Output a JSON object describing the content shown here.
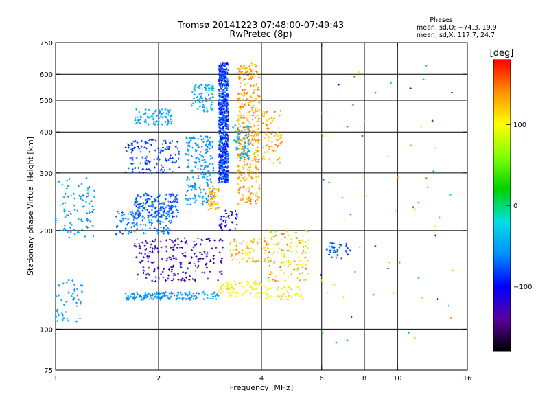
{
  "chart_data": {
    "type": "scatter",
    "title": "Tromsø 20141223 07:48:00-07:49:43",
    "subtitle": "RwPretec (8p)",
    "stats": {
      "heading": "Phases",
      "line1": "mean, sd,O: −74.3, 19.9",
      "line2": "mean, sd,X: 117.7, 24.7"
    },
    "xlabel": "Frequency [MHz]",
    "ylabel": "Stationary phase Virtual Height [km]",
    "x_scale": "log",
    "y_scale": "log",
    "xlim": [
      1,
      16
    ],
    "ylim": [
      75,
      750
    ],
    "xticks": [
      1,
      2,
      4,
      6,
      8,
      10,
      16
    ],
    "xtick_labels": [
      "1",
      "2",
      "4",
      "6",
      "8",
      "10",
      "16"
    ],
    "x_gridlines": [
      2,
      4,
      6,
      8,
      10
    ],
    "yticks": [
      75,
      100,
      200,
      300,
      400,
      500,
      600,
      750
    ],
    "ytick_labels": [
      "75",
      "100",
      "200",
      "300",
      "400",
      "500",
      "600",
      "750"
    ],
    "y_gridlines": [
      100,
      200,
      300,
      400,
      500,
      600
    ],
    "grid": true,
    "colorbar": {
      "label": "[deg]",
      "range": [
        -180,
        180
      ],
      "ticks": [
        100,
        0,
        -100
      ],
      "tick_labels": [
        "100",
        "0",
        "−100"
      ],
      "colors": [
        "#000000",
        "#5a00a0",
        "#0000ff",
        "#0090ff",
        "#00e0e0",
        "#00d000",
        "#80ff00",
        "#ffff00",
        "#ff9000",
        "#ff0000"
      ]
    },
    "series": [
      {
        "values_note": "",
        "clusters": [
          {
            "f": [
              1.0,
              1.3
            ],
            "h": [
              190,
              290
            ],
            "phase": [
              -70,
              -40
            ],
            "n": 90
          },
          {
            "f": [
              1.0,
              1.2
            ],
            "h": [
              105,
              145
            ],
            "phase": [
              -60,
              -40
            ],
            "n": 50
          },
          {
            "f": [
              1.5,
              2.2
            ],
            "h": [
              195,
              230
            ],
            "phase": [
              -80,
              -55
            ],
            "n": 130
          },
          {
            "f": [
              1.7,
              2.3
            ],
            "h": [
              220,
              260
            ],
            "phase": [
              -90,
              -60
            ],
            "n": 160
          },
          {
            "f": [
              1.6,
              2.3
            ],
            "h": [
              300,
              380
            ],
            "phase": [
              -95,
              -70
            ],
            "n": 130
          },
          {
            "f": [
              1.7,
              2.2
            ],
            "h": [
              420,
              470
            ],
            "phase": [
              -60,
              -40
            ],
            "n": 80
          },
          {
            "f": [
              2.4,
              2.9
            ],
            "h": [
              240,
              390
            ],
            "phase": [
              -70,
              -40
            ],
            "n": 200
          },
          {
            "f": [
              2.5,
              2.9
            ],
            "h": [
              460,
              560
            ],
            "phase": [
              -55,
              -40
            ],
            "n": 80
          },
          {
            "f": [
              3.0,
              3.2
            ],
            "h": [
              280,
              650
            ],
            "phase": [
              -115,
              -55
            ],
            "n": 650
          },
          {
            "f": [
              2.8,
              3.0
            ],
            "h": [
              230,
              270
            ],
            "phase": [
              110,
              140
            ],
            "n": 50
          },
          {
            "f": [
              3.4,
              3.95
            ],
            "h": [
              240,
              650
            ],
            "phase": [
              115,
              150
            ],
            "n": 380
          },
          {
            "f": [
              3.3,
              3.7
            ],
            "h": [
              330,
              420
            ],
            "phase": [
              -60,
              -40
            ],
            "n": 70
          },
          {
            "f": [
              4.0,
              4.6
            ],
            "h": [
              320,
              470
            ],
            "phase": [
              110,
              150
            ],
            "n": 70
          },
          {
            "f": [
              1.6,
              3.0
            ],
            "h": [
              123,
              130
            ],
            "phase": [
              -70,
              -40
            ],
            "n": 170
          },
          {
            "f": [
              1.7,
              3.1
            ],
            "h": [
              140,
              190
            ],
            "phase": [
              -150,
              -100
            ],
            "n": 220
          },
          {
            "f": [
              3.0,
              4.0
            ],
            "h": [
              125,
              140
            ],
            "phase": [
              90,
              120
            ],
            "n": 70
          },
          {
            "f": [
              3.2,
              4.2
            ],
            "h": [
              160,
              190
            ],
            "phase": [
              100,
              150
            ],
            "n": 80
          },
          {
            "f": [
              4.2,
              5.5
            ],
            "h": [
              140,
              200
            ],
            "phase": [
              60,
              160
            ],
            "n": 110
          },
          {
            "f": [
              4.1,
              5.3
            ],
            "h": [
              123,
              135
            ],
            "phase": [
              90,
              120
            ],
            "n": 50
          },
          {
            "f": [
              3.0,
              3.4
            ],
            "h": [
              200,
              230
            ],
            "phase": [
              -110,
              -90
            ],
            "n": 40
          },
          {
            "f": [
              6.2,
              7.3
            ],
            "h": [
              165,
              185
            ],
            "phase": [
              -100,
              -60
            ],
            "n": 35
          },
          {
            "f": [
              5.9,
              14.5
            ],
            "h": [
              85,
              650
            ],
            "phase": [
              -150,
              170
            ],
            "n": 70
          }
        ]
      }
    ]
  }
}
